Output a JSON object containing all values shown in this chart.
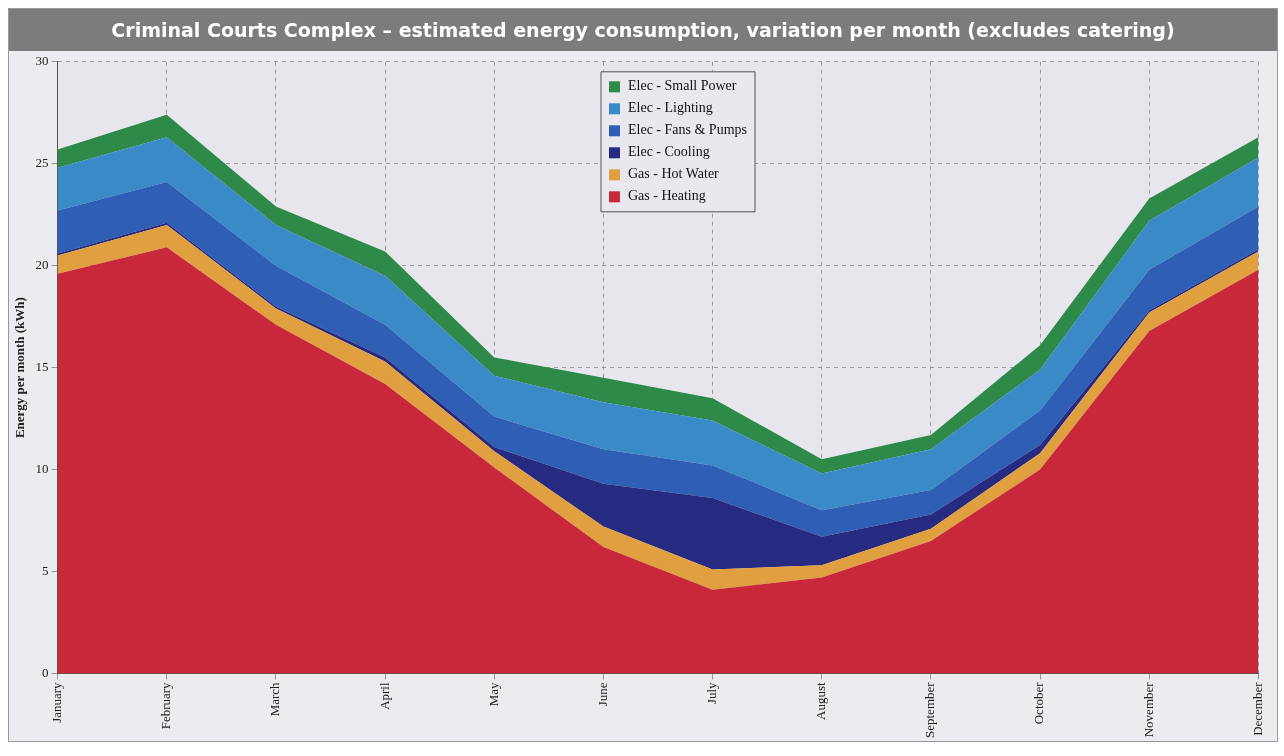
{
  "chart_data": {
    "type": "area",
    "title": "Criminal Courts Complex – estimated energy consumption, variation  per month (excludes catering)",
    "ylabel": "Energy per month (kWh)",
    "categories": [
      "January",
      "February",
      "March",
      "April",
      "May",
      "June",
      "July",
      "August",
      "September",
      "October",
      "November",
      "December"
    ],
    "stacked": true,
    "ylim": [
      0,
      30
    ],
    "yticks": [
      0,
      5,
      10,
      15,
      20,
      25,
      30
    ],
    "grid": true,
    "legend": "top",
    "series": [
      {
        "name": "Gas - Heating",
        "color": "#c8283a",
        "values": [
          19.6,
          20.9,
          17.1,
          14.2,
          10.1,
          6.2,
          4.1,
          4.7,
          6.5,
          10.0,
          16.8,
          19.8
        ]
      },
      {
        "name": "Gas - Hot Water",
        "color": "#e0a040",
        "values": [
          0.9,
          1.1,
          0.8,
          1.1,
          0.8,
          1.0,
          1.0,
          0.6,
          0.6,
          0.8,
          0.9,
          0.9
        ]
      },
      {
        "name": "Elec - Cooling",
        "color": "#262a80",
        "values": [
          0.1,
          0.1,
          0.1,
          0.2,
          0.2,
          2.1,
          3.5,
          1.4,
          0.7,
          0.4,
          0.1,
          0.1
        ]
      },
      {
        "name": "Elec - Fans & Pumps",
        "color": "#2f5fb5",
        "values": [
          2.1,
          2.0,
          2.0,
          1.6,
          1.5,
          1.7,
          1.6,
          1.3,
          1.2,
          1.7,
          2.0,
          2.1
        ]
      },
      {
        "name": "Elec - Lighting",
        "color": "#3a8ac8",
        "values": [
          2.1,
          2.2,
          2.0,
          2.4,
          2.0,
          2.3,
          2.2,
          1.8,
          2.0,
          2.0,
          2.4,
          2.4
        ]
      },
      {
        "name": "Elec - Small Power",
        "color": "#2e8a48",
        "values": [
          0.9,
          1.1,
          0.9,
          1.2,
          0.9,
          1.2,
          1.1,
          0.7,
          0.7,
          1.2,
          1.1,
          1.0
        ]
      }
    ]
  }
}
